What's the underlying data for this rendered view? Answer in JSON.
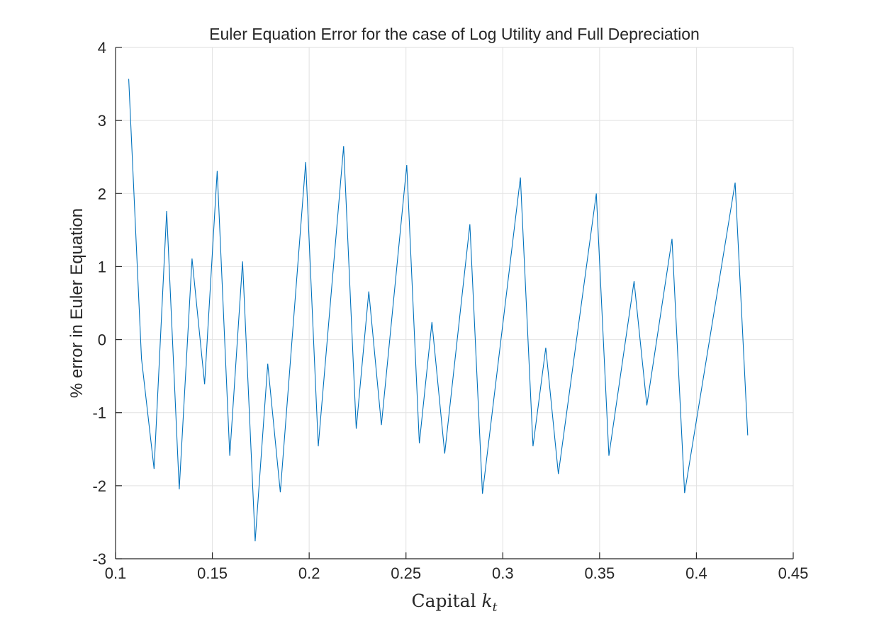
{
  "chart_data": {
    "type": "line",
    "title": "Euler Equation Error for the case of Log Utility and Full Depreciation",
    "xlabel": "Capital",
    "xlabel_var": "k",
    "xlabel_sub": "t",
    "ylabel": "% error in Euler Equation",
    "xlim": [
      0.1,
      0.45
    ],
    "ylim": [
      -3,
      4
    ],
    "xticks": [
      0.1,
      0.15,
      0.2,
      0.25,
      0.3,
      0.35,
      0.4,
      0.45
    ],
    "xtick_labels": [
      "0.1",
      "0.15",
      "0.2",
      "0.25",
      "0.3",
      "0.35",
      "0.4",
      "0.45"
    ],
    "yticks": [
      -3,
      -2,
      -1,
      0,
      1,
      2,
      3,
      4
    ],
    "ytick_labels": [
      "-3",
      "-2",
      "-1",
      "0",
      "1",
      "2",
      "3",
      "4"
    ],
    "grid": true,
    "series": [
      {
        "color": "#0072BD",
        "x": [
          0.1068,
          0.1134,
          0.1199,
          0.1264,
          0.1329,
          0.1395,
          0.146,
          0.1525,
          0.159,
          0.1656,
          0.1721,
          0.1786,
          0.1851,
          0.1982,
          0.2047,
          0.2178,
          0.2243,
          0.2308,
          0.2373,
          0.2504,
          0.2569,
          0.2634,
          0.27,
          0.283,
          0.2895,
          0.3091,
          0.3156,
          0.3222,
          0.3287,
          0.3483,
          0.3548,
          0.3678,
          0.3744,
          0.3874,
          0.3939,
          0.42,
          0.4265
        ],
        "y": [
          3.57,
          -0.26,
          -1.77,
          1.76,
          -2.05,
          1.11,
          -0.61,
          2.31,
          -1.59,
          1.07,
          -2.76,
          -0.33,
          -2.09,
          2.43,
          -1.46,
          2.65,
          -1.22,
          0.66,
          -1.17,
          2.39,
          -1.42,
          0.24,
          -1.56,
          1.58,
          -2.11,
          2.22,
          -1.46,
          -0.11,
          -1.84,
          2.0,
          -1.59,
          0.8,
          -0.9,
          1.38,
          -2.1,
          2.15,
          -1.31
        ]
      }
    ]
  }
}
